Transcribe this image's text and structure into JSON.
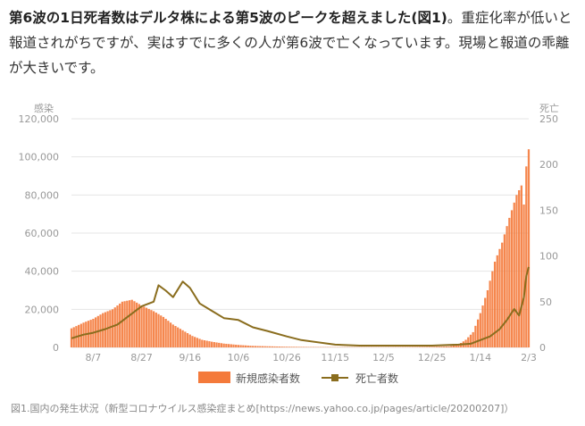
{
  "article": {
    "lead_bold": "第6波の1日死者数はデルタ株による第5波のピークを超えました(図1)",
    "body_text": "。重症化率が低いと報道されがちですが、実はすでに多くの人が第6波で亡くなっています。現場と報道の乖離が大きいです。"
  },
  "caption": "図1.国内の発生状況（新型コロナウイルス感染症まとめ[https://news.yahoo.co.jp/pages/article/20200207]）",
  "colors": {
    "cases": "#f47a3b",
    "deaths": "#8a6d1e",
    "grid": "#e5e5e5",
    "tick_text": "#999999"
  },
  "chart_data": {
    "type": "bar+line",
    "title": "",
    "ylabel_left": "感染",
    "ylabel_right": "死亡",
    "ylim_left": [
      0,
      120000
    ],
    "ylim_right": [
      0,
      250
    ],
    "yticks_left": [
      "0",
      "20,000",
      "40,000",
      "60,000",
      "80,000",
      "100,000",
      "120,000"
    ],
    "yticks_right": [
      "0",
      "50",
      "100",
      "150",
      "200",
      "250"
    ],
    "xticks": [
      "8/7",
      "8/27",
      "9/16",
      "10/6",
      "10/26",
      "11/15",
      "12/5",
      "12/25",
      "1/14",
      "2/3"
    ],
    "x_range": [
      "7/29",
      "2/3"
    ],
    "legend": [
      "新規感染者数",
      "死亡者数"
    ],
    "legend_position": "bottom-center",
    "grid": true,
    "series": [
      {
        "name": "新規感染者数",
        "kind": "bar",
        "axis": "left",
        "x": [
          "7/29",
          "8/3",
          "8/7",
          "8/11",
          "8/15",
          "8/19",
          "8/23",
          "8/27",
          "9/1",
          "9/5",
          "9/9",
          "9/13",
          "9/17",
          "9/21",
          "9/25",
          "9/30",
          "10/6",
          "10/12",
          "10/18",
          "10/26",
          "11/5",
          "11/15",
          "11/25",
          "12/5",
          "12/15",
          "12/25",
          "1/1",
          "1/5",
          "1/8",
          "1/11",
          "1/14",
          "1/17",
          "1/20",
          "1/23",
          "1/26",
          "1/29",
          "1/31",
          "2/1",
          "2/2",
          "2/3"
        ],
        "values": [
          10000,
          13000,
          15000,
          18000,
          20000,
          24000,
          25000,
          22000,
          19000,
          16000,
          12000,
          9000,
          6000,
          4000,
          3000,
          2000,
          1300,
          800,
          600,
          350,
          200,
          150,
          150,
          140,
          200,
          300,
          500,
          1500,
          4000,
          8000,
          18000,
          30000,
          45000,
          55000,
          68000,
          80000,
          85000,
          75000,
          95000,
          104000
        ]
      },
      {
        "name": "死亡者数",
        "kind": "line",
        "axis": "right",
        "x": [
          "7/29",
          "8/3",
          "8/7",
          "8/12",
          "8/17",
          "8/22",
          "8/27",
          "9/1",
          "9/3",
          "9/6",
          "9/9",
          "9/13",
          "9/16",
          "9/20",
          "9/25",
          "9/30",
          "10/6",
          "10/12",
          "10/18",
          "10/26",
          "11/1",
          "11/15",
          "11/25",
          "12/5",
          "12/15",
          "12/25",
          "1/5",
          "1/10",
          "1/14",
          "1/18",
          "1/22",
          "1/25",
          "1/28",
          "1/30",
          "2/1",
          "2/2",
          "2/3"
        ],
        "values": [
          10,
          14,
          16,
          20,
          25,
          35,
          45,
          50,
          68,
          62,
          55,
          72,
          65,
          48,
          40,
          32,
          30,
          22,
          18,
          12,
          8,
          3,
          2,
          2,
          2,
          2,
          3,
          4,
          8,
          12,
          20,
          30,
          42,
          35,
          55,
          78,
          88
        ]
      }
    ]
  }
}
